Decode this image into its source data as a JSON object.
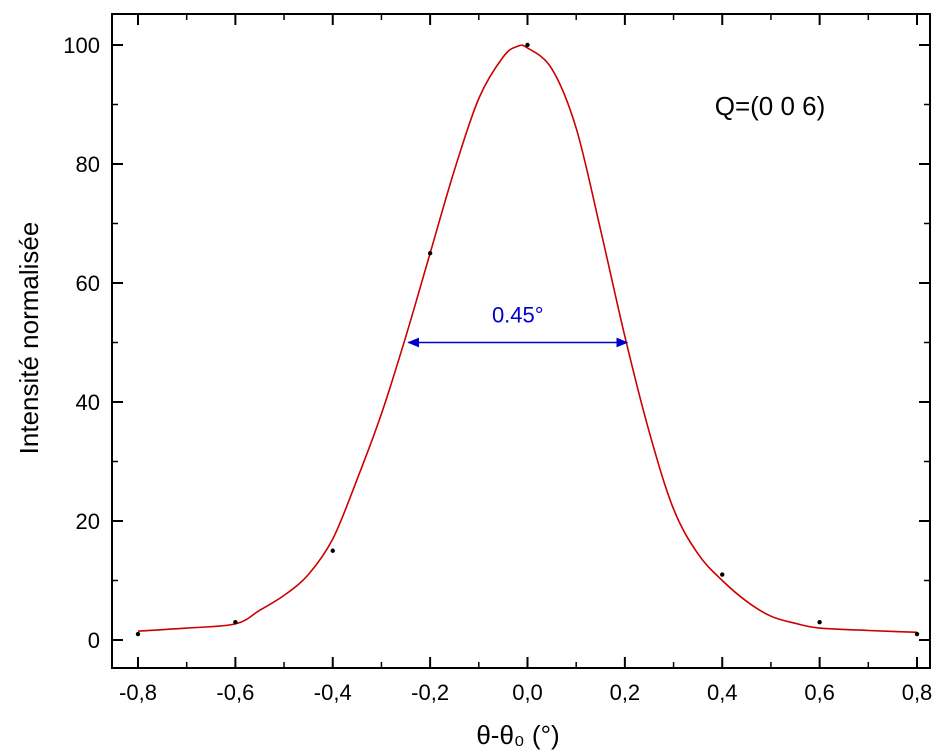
{
  "chart_data": {
    "type": "scatter",
    "title": "",
    "xlabel": "θ-θ₀ (°)",
    "ylabel": "Intensité normalisée",
    "xlim": [
      -0.8,
      0.8
    ],
    "ylim": [
      0,
      100
    ],
    "x_ticks": [
      "-0,8",
      "-0,6",
      "-0,4",
      "-0,2",
      "0,0",
      "0,2",
      "0,4",
      "0,6",
      "0,8"
    ],
    "y_ticks": [
      "0",
      "20",
      "40",
      "60",
      "80",
      "100"
    ],
    "grid": false,
    "series": [
      {
        "kind": "points",
        "color": "#000000",
        "x": [
          -0.8,
          -0.6,
          -0.4,
          -0.2,
          0.0,
          0.4,
          0.6,
          0.8
        ],
        "y": [
          1,
          3,
          15,
          65,
          100,
          11,
          3,
          1
        ]
      },
      {
        "kind": "fit",
        "color": "#cc0000",
        "x": [
          -0.8,
          -0.7,
          -0.6,
          -0.55,
          -0.5,
          -0.45,
          -0.4,
          -0.35,
          -0.3,
          -0.25,
          -0.2,
          -0.15,
          -0.1,
          -0.05,
          -0.02,
          0.0,
          0.05,
          0.1,
          0.15,
          0.2,
          0.25,
          0.3,
          0.35,
          0.4,
          0.45,
          0.5,
          0.55,
          0.6,
          0.7,
          0.8
        ],
        "y": [
          1.5,
          2.0,
          2.7,
          5.0,
          7.5,
          11.0,
          17.0,
          27.0,
          38.0,
          51.0,
          65.0,
          79.0,
          91.0,
          98.0,
          99.8,
          99.5,
          96.0,
          86.0,
          69.0,
          51.0,
          35.0,
          22.0,
          14.5,
          10.0,
          6.5,
          4.0,
          2.8,
          2.0,
          1.6,
          1.3
        ]
      }
    ],
    "annotations": {
      "q_label": "Q=(0 0 6)",
      "fwhm_label": "0.45°",
      "fwhm_arrow": {
        "x1": -0.245,
        "x2": 0.205,
        "y": 50,
        "color": "#0000cc"
      }
    }
  }
}
